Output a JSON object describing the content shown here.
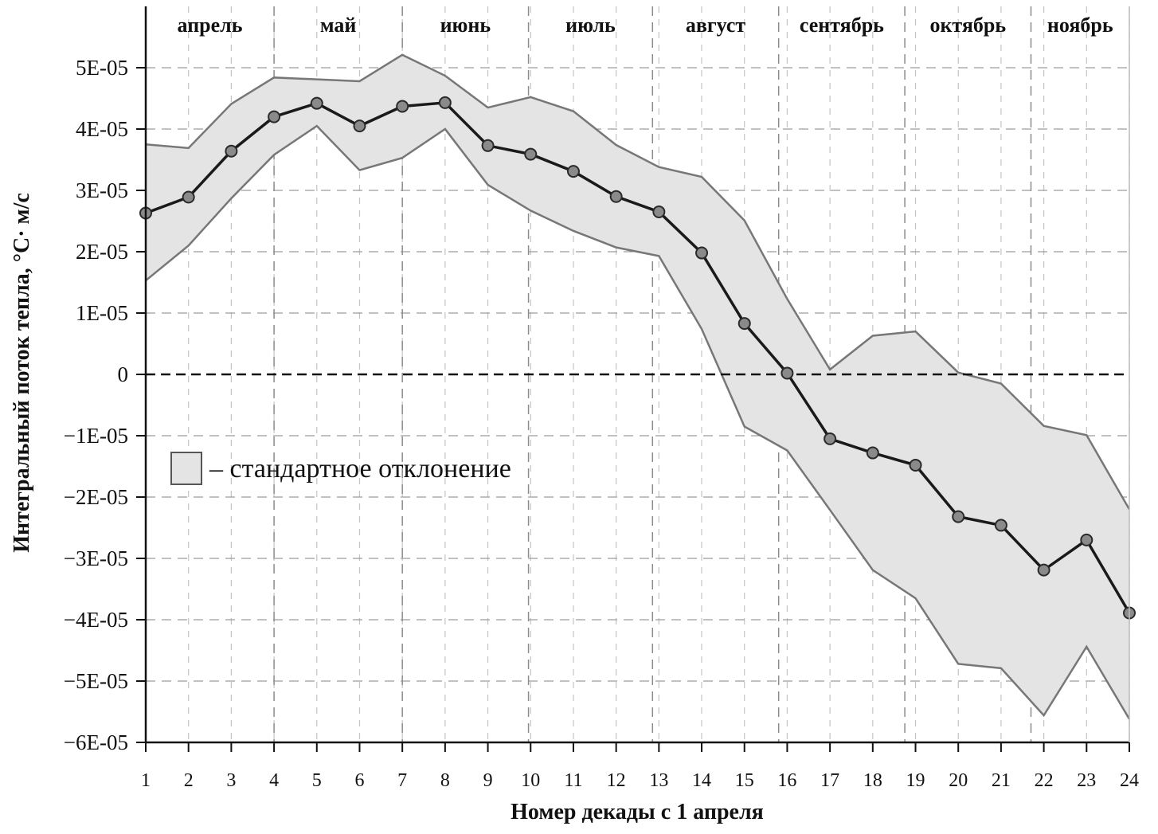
{
  "chart_data": {
    "type": "line",
    "xlabel": "Номер декады с 1 апреля",
    "ylabel": "Интегральный поток тепла, °С· м/с",
    "x": [
      1,
      2,
      3,
      4,
      5,
      6,
      7,
      8,
      9,
      10,
      11,
      12,
      13,
      14,
      15,
      16,
      17,
      18,
      19,
      20,
      21,
      22,
      23,
      24
    ],
    "x_ticks": [
      "1",
      "2",
      "3",
      "4",
      "5",
      "6",
      "7",
      "8",
      "9",
      "10",
      "11",
      "12",
      "13",
      "14",
      "15",
      "16",
      "17",
      "18",
      "19",
      "20",
      "21",
      "22",
      "23",
      "24"
    ],
    "xlim": [
      1,
      24
    ],
    "ylim": [
      -6e-05,
      6e-05
    ],
    "y_ticks": [
      {
        "value": 5e-05,
        "label": "5E-05"
      },
      {
        "value": 4e-05,
        "label": "4E-05"
      },
      {
        "value": 3e-05,
        "label": "3E-05"
      },
      {
        "value": 2e-05,
        "label": "2E-05"
      },
      {
        "value": 1e-05,
        "label": "1E-05"
      },
      {
        "value": 0,
        "label": "0"
      },
      {
        "value": -1e-05,
        "label": "−1E-05"
      },
      {
        "value": -2e-05,
        "label": "−2E-05"
      },
      {
        "value": -3e-05,
        "label": "−3E-05"
      },
      {
        "value": -4e-05,
        "label": "−4E-05"
      },
      {
        "value": -5e-05,
        "label": "−5E-05"
      },
      {
        "value": -6e-05,
        "label": "−6E-05"
      }
    ],
    "grid": true,
    "zero_line": "dashed",
    "series": [
      {
        "values": [
          2.63e-05,
          2.89e-05,
          3.64e-05,
          4.2e-05,
          4.42e-05,
          4.05e-05,
          4.37e-05,
          4.43e-05,
          3.73e-05,
          3.59e-05,
          3.31e-05,
          2.9e-05,
          2.65e-05,
          1.98e-05,
          8.3e-06,
          2e-07,
          -1.05e-05,
          -1.28e-05,
          -1.48e-05,
          -2.32e-05,
          -2.46e-05,
          -3.19e-05,
          -2.7e-05,
          -3.89e-05
        ],
        "color": "#1a1a1a",
        "marker_color": "#8a8a8a"
      }
    ],
    "band": {
      "label": "– стандартное отклонение",
      "upper": [
        3.75e-05,
        3.69e-05,
        4.41e-05,
        4.84e-05,
        4.81e-05,
        4.78e-05,
        5.21e-05,
        4.87e-05,
        4.35e-05,
        4.52e-05,
        4.29e-05,
        3.74e-05,
        3.38e-05,
        3.22e-05,
        2.51e-05,
        1.23e-05,
        8e-07,
        6.3e-06,
        7e-06,
        3e-07,
        -1.5e-06,
        -8.4e-06,
        -9.9e-06,
        -2.2e-05
      ],
      "lower": [
        1.53e-05,
        2.1e-05,
        2.87e-05,
        3.58e-05,
        4.05e-05,
        3.33e-05,
        3.53e-05,
        4e-05,
        3.09e-05,
        2.67e-05,
        2.34e-05,
        2.07e-05,
        1.93e-05,
        7.4e-06,
        -8.5e-06,
        -1.24e-05,
        -2.21e-05,
        -3.19e-05,
        -3.65e-05,
        -4.72e-05,
        -4.79e-05,
        -5.56e-05,
        -4.44e-05,
        -5.62e-05
      ],
      "fill": "#e4e4e4",
      "stroke": "#777777"
    },
    "legend": {
      "position": "center-left"
    },
    "months": [
      {
        "name": "апрель",
        "start": 1,
        "end": 4
      },
      {
        "name": "май",
        "start": 4,
        "end": 7
      },
      {
        "name": "июнь",
        "start": 7,
        "end": 9.95
      },
      {
        "name": "июль",
        "start": 9.95,
        "end": 12.85
      },
      {
        "name": "август",
        "start": 12.85,
        "end": 15.8
      },
      {
        "name": "сентябрь",
        "start": 15.8,
        "end": 18.75
      },
      {
        "name": "октябрь",
        "start": 18.75,
        "end": 21.7
      },
      {
        "name": "ноябрь",
        "start": 21.7,
        "end": 24
      }
    ]
  }
}
